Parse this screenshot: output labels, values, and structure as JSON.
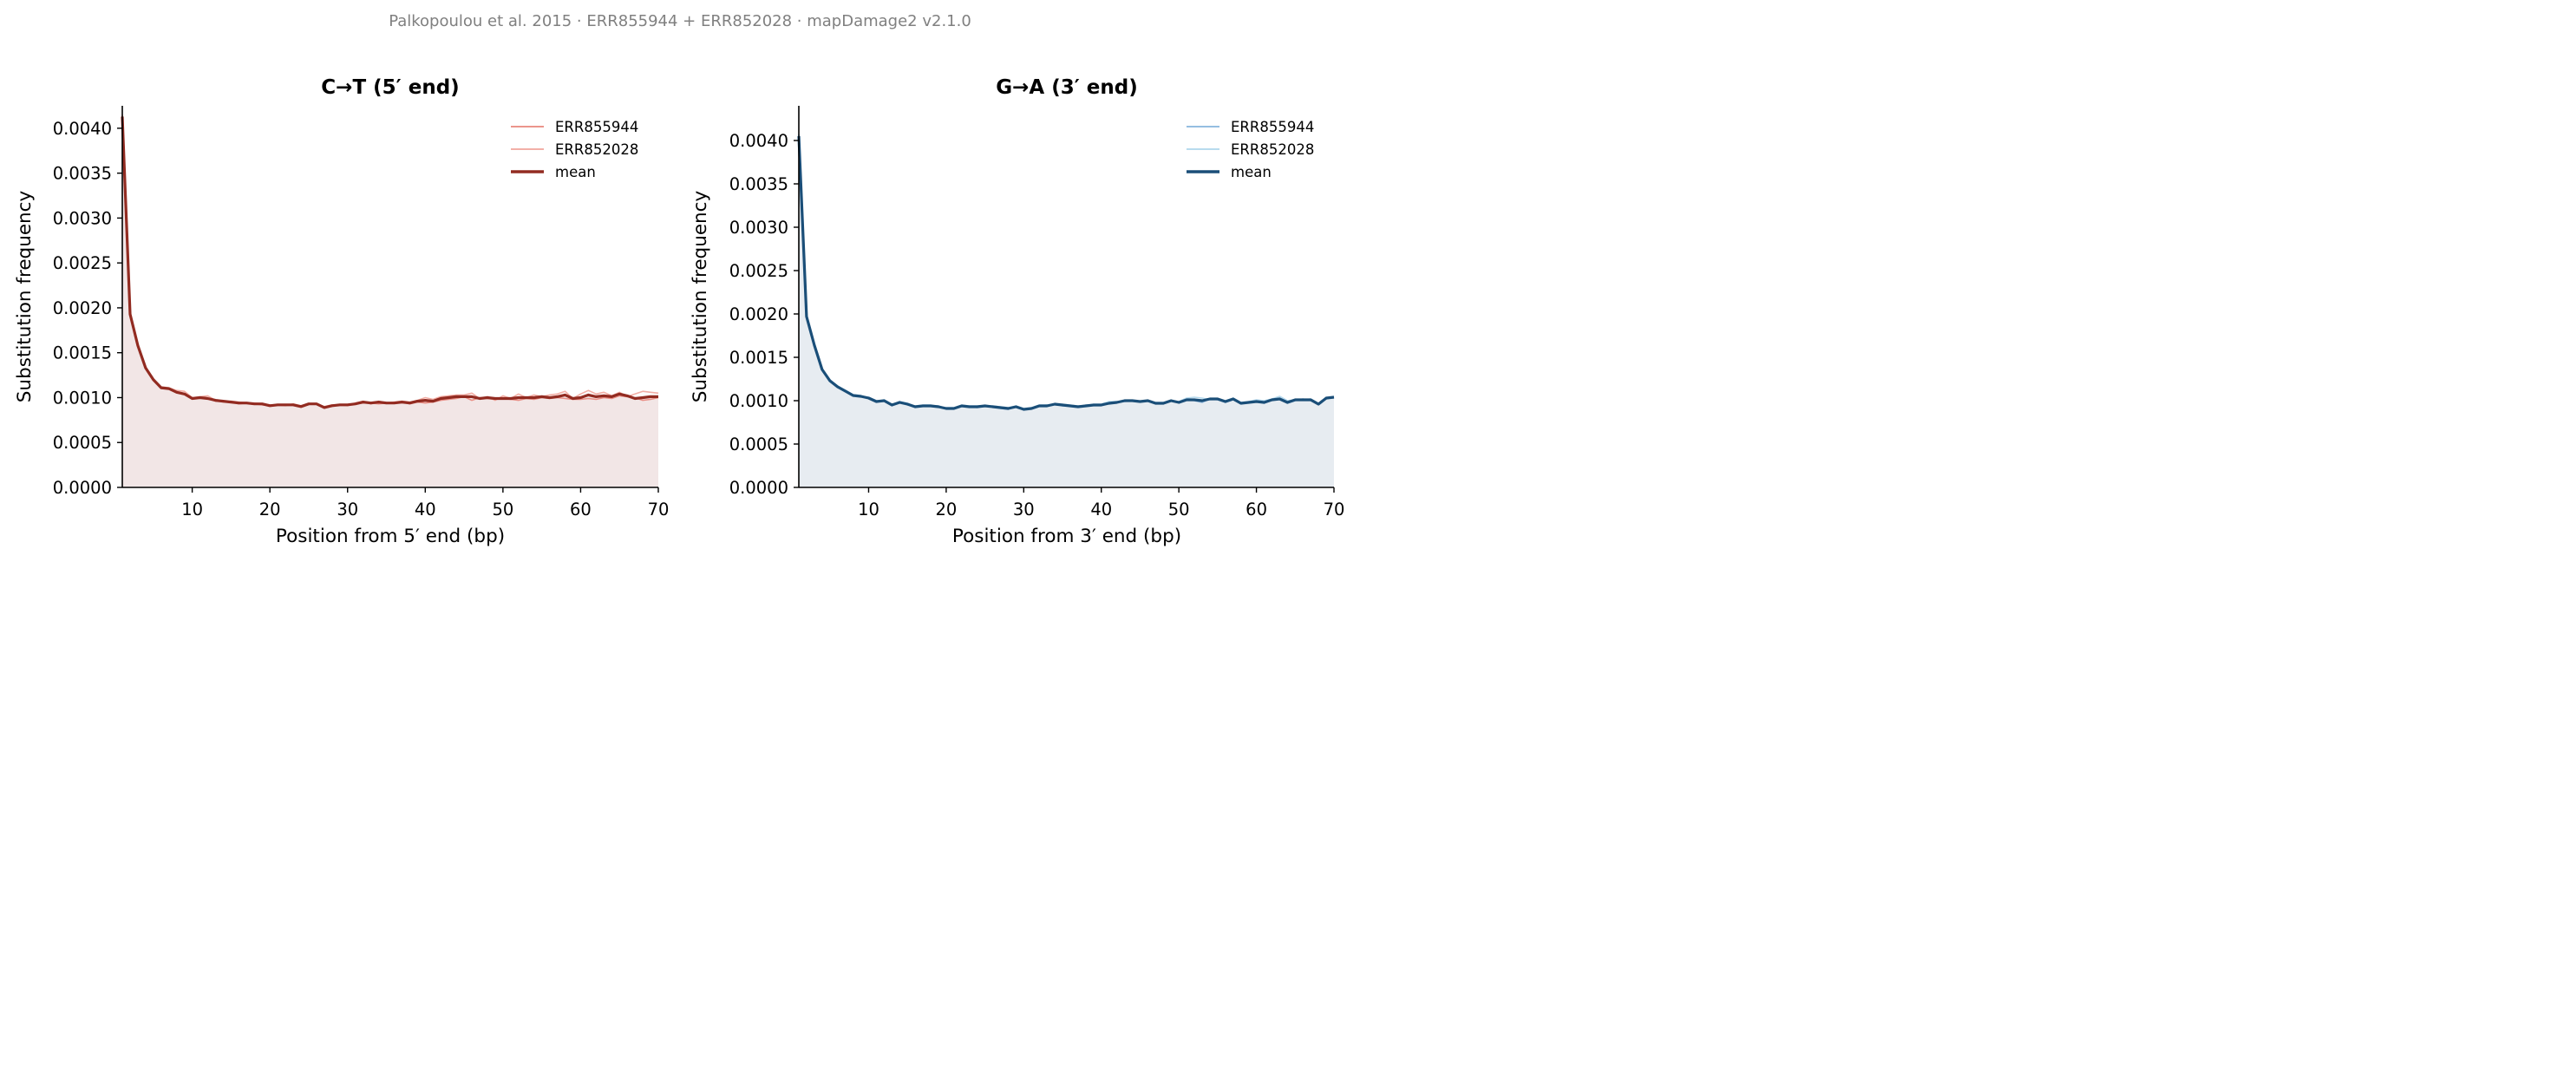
{
  "suptitle": "Palkopoulou et al. 2015  ·  ERR855944 + ERR852028  ·  mapDamage2 v2.1.0",
  "chart_data": [
    {
      "type": "line",
      "title": "C→T  (5′ end)",
      "xlabel": "Position from 5′ end (bp)",
      "ylabel": "Substitution frequency",
      "xlim": [
        1,
        70
      ],
      "ylim": [
        0,
        0.00425
      ],
      "xticks": [
        10,
        20,
        30,
        40,
        50,
        60,
        70
      ],
      "yticks": [
        "0.0000",
        "0.0005",
        "0.0010",
        "0.0015",
        "0.0020",
        "0.0025",
        "0.0030",
        "0.0035",
        "0.0040"
      ],
      "legend_position": "top-right",
      "grid": false,
      "fill_under": "mean",
      "colors": {
        "fill": "#f2e6e6",
        "series_1": "#e8867c",
        "series_2": "#f1a59b",
        "mean": "#922b21"
      },
      "x": [
        1,
        2,
        3,
        4,
        5,
        6,
        7,
        8,
        9,
        10,
        11,
        12,
        13,
        14,
        15,
        16,
        17,
        18,
        19,
        20,
        21,
        22,
        23,
        24,
        25,
        26,
        27,
        28,
        29,
        30,
        31,
        32,
        33,
        34,
        35,
        36,
        37,
        38,
        39,
        40,
        41,
        42,
        43,
        44,
        45,
        46,
        47,
        48,
        49,
        50,
        51,
        52,
        53,
        54,
        55,
        56,
        57,
        58,
        59,
        60,
        61,
        62,
        63,
        64,
        65,
        66,
        67,
        68,
        69,
        70
      ],
      "series": [
        {
          "name": "ERR855944",
          "values": [
            0.00415,
            0.00192,
            0.00157,
            0.00133,
            0.00119,
            0.00111,
            0.0011,
            0.00106,
            0.00104,
            0.001,
            0.001,
            0.00099,
            0.00096,
            0.00096,
            0.00095,
            0.00093,
            0.00094,
            0.00093,
            0.00092,
            0.00091,
            0.00092,
            0.00092,
            0.00092,
            0.0009,
            0.00093,
            0.00093,
            0.00089,
            0.00091,
            0.00092,
            0.00092,
            0.00093,
            0.00094,
            0.00094,
            0.00093,
            0.00094,
            0.00094,
            0.00095,
            0.00093,
            0.00095,
            0.00094,
            0.00095,
            0.00097,
            0.00098,
            0.00099,
            0.00101,
            0.00097,
            0.001,
            0.00099,
            0.00098,
            0.00099,
            0.00098,
            0.00097,
            0.00099,
            0.00098,
            0.001,
            0.00099,
            0.001,
            0.00099,
            0.00098,
            0.00098,
            0.00099,
            0.00098,
            0.001,
            0.00099,
            0.00102,
            0.00101,
            0.001,
            0.00097,
            0.00098,
            0.001
          ]
        },
        {
          "name": "ERR852028",
          "values": [
            0.00412,
            0.00195,
            0.00159,
            0.00134,
            0.0012,
            0.00112,
            0.00111,
            0.00108,
            0.00107,
            0.001,
            0.00101,
            0.00102,
            0.00097,
            0.00095,
            0.00096,
            0.00095,
            0.00094,
            0.00094,
            0.00093,
            0.00092,
            0.00092,
            0.00091,
            0.00093,
            0.00091,
            0.00093,
            0.00093,
            0.0009,
            0.00092,
            0.00092,
            0.00091,
            0.00094,
            0.00096,
            0.00093,
            0.00096,
            0.00094,
            0.00095,
            0.00096,
            0.00095,
            0.00097,
            0.001,
            0.00098,
            0.00101,
            0.00102,
            0.00103,
            0.00103,
            0.00105,
            0.00099,
            0.00101,
            0.00097,
            0.00102,
            0.00099,
            0.00104,
            0.001,
            0.00103,
            0.00101,
            0.00103,
            0.00104,
            0.00107,
            0.00099,
            0.00104,
            0.00108,
            0.00104,
            0.00106,
            0.00102,
            0.00106,
            0.00101,
            0.00104,
            0.00107,
            0.00106,
            0.00105
          ]
        },
        {
          "name": "mean",
          "values": [
            0.00413,
            0.00193,
            0.00158,
            0.00133,
            0.0012,
            0.00111,
            0.0011,
            0.00106,
            0.00104,
            0.00099,
            0.001,
            0.00099,
            0.00097,
            0.00096,
            0.00095,
            0.00094,
            0.00094,
            0.00093,
            0.00093,
            0.00091,
            0.00092,
            0.00092,
            0.00092,
            0.0009,
            0.00093,
            0.00093,
            0.00089,
            0.00091,
            0.00092,
            0.00092,
            0.00093,
            0.00095,
            0.00094,
            0.00095,
            0.00094,
            0.00094,
            0.00095,
            0.00094,
            0.00096,
            0.00097,
            0.00096,
            0.00099,
            0.001,
            0.00101,
            0.00101,
            0.00101,
            0.00099,
            0.001,
            0.00099,
            0.00099,
            0.00099,
            0.001,
            0.001,
            0.001,
            0.00101,
            0.001,
            0.00101,
            0.00103,
            0.00099,
            0.001,
            0.00103,
            0.00101,
            0.00102,
            0.00101,
            0.00104,
            0.00102,
            0.00099,
            0.001,
            0.00101,
            0.00101
          ]
        }
      ]
    },
    {
      "type": "line",
      "title": "G→A  (3′ end)",
      "xlabel": "Position from 3′ end (bp)",
      "ylabel": "Substitution frequency",
      "xlim": [
        1,
        70
      ],
      "ylim": [
        0,
        0.0044
      ],
      "xticks": [
        10,
        20,
        30,
        40,
        50,
        60,
        70
      ],
      "yticks": [
        "0.0000",
        "0.0005",
        "0.0010",
        "0.0015",
        "0.0020",
        "0.0025",
        "0.0030",
        "0.0035",
        "0.0040"
      ],
      "legend_position": "top-right",
      "grid": false,
      "fill_under": "mean",
      "colors": {
        "fill": "#e7ecf1",
        "series_1": "#86b4dd",
        "series_2": "#aed6ec",
        "mean": "#1a4e78"
      },
      "x": [
        1,
        2,
        3,
        4,
        5,
        6,
        7,
        8,
        9,
        10,
        11,
        12,
        13,
        14,
        15,
        16,
        17,
        18,
        19,
        20,
        21,
        22,
        23,
        24,
        25,
        26,
        27,
        28,
        29,
        30,
        31,
        32,
        33,
        34,
        35,
        36,
        37,
        38,
        39,
        40,
        41,
        42,
        43,
        44,
        45,
        46,
        47,
        48,
        49,
        50,
        51,
        52,
        53,
        54,
        55,
        56,
        57,
        58,
        59,
        60,
        61,
        62,
        63,
        64,
        65,
        66,
        67,
        68,
        69,
        70
      ],
      "series": [
        {
          "name": "ERR855944",
          "values": [
            0.00407,
            0.00196,
            0.00163,
            0.00135,
            0.00122,
            0.00115,
            0.00111,
            0.00106,
            0.00105,
            0.00104,
            0.001,
            0.001,
            0.00095,
            0.00099,
            0.00097,
            0.00093,
            0.00094,
            0.00094,
            0.00094,
            0.00091,
            0.00091,
            0.00094,
            0.00093,
            0.00092,
            0.00094,
            0.00093,
            0.00091,
            0.0009,
            0.00093,
            0.0009,
            0.00091,
            0.00094,
            0.00095,
            0.00096,
            0.00094,
            0.00094,
            0.00093,
            0.00095,
            0.00095,
            0.00095,
            0.00097,
            0.00098,
            0.00099,
            0.001,
            0.00099,
            0.001,
            0.00097,
            0.00097,
            0.001,
            0.00098,
            0.00101,
            0.001,
            0.00098,
            0.00102,
            0.00101,
            0.00098,
            0.00101,
            0.00097,
            0.00098,
            0.00099,
            0.00097,
            0.00101,
            0.00103,
            0.00097,
            0.001,
            0.00102,
            0.001,
            0.00096,
            0.00102,
            0.00104
          ]
        },
        {
          "name": "ERR852028",
          "values": [
            0.00402,
            0.00199,
            0.00166,
            0.00137,
            0.00124,
            0.00117,
            0.00112,
            0.00107,
            0.00106,
            0.00103,
            0.00099,
            0.00101,
            0.00096,
            0.00098,
            0.00095,
            0.00094,
            0.00095,
            0.00095,
            0.00093,
            0.00092,
            0.00092,
            0.00095,
            0.00094,
            0.00094,
            0.00094,
            0.00094,
            0.00093,
            0.00092,
            0.00094,
            0.00091,
            0.00092,
            0.00095,
            0.00095,
            0.00096,
            0.00096,
            0.00095,
            0.00094,
            0.00094,
            0.00096,
            0.00096,
            0.00099,
            0.00099,
            0.001,
            0.001,
            0.00099,
            0.001,
            0.00098,
            0.00098,
            0.001,
            0.00099,
            0.00103,
            0.00104,
            0.00103,
            0.00101,
            0.00102,
            0.001,
            0.00103,
            0.00098,
            0.00099,
            0.00101,
            0.001,
            0.00102,
            0.00105,
            0.001,
            0.00101,
            0.00101,
            0.00102,
            0.00097,
            0.00103,
            0.00105
          ]
        },
        {
          "name": "mean",
          "values": [
            0.00405,
            0.00197,
            0.00164,
            0.00136,
            0.00123,
            0.00116,
            0.00111,
            0.00106,
            0.00105,
            0.00103,
            0.00099,
            0.001,
            0.00095,
            0.00098,
            0.00096,
            0.00093,
            0.00094,
            0.00094,
            0.00093,
            0.00091,
            0.00091,
            0.00094,
            0.00093,
            0.00093,
            0.00094,
            0.00093,
            0.00092,
            0.00091,
            0.00093,
            0.0009,
            0.00091,
            0.00094,
            0.00094,
            0.00096,
            0.00095,
            0.00094,
            0.00093,
            0.00094,
            0.00095,
            0.00095,
            0.00097,
            0.00098,
            0.001,
            0.001,
            0.00099,
            0.001,
            0.00097,
            0.00097,
            0.001,
            0.00098,
            0.00101,
            0.00101,
            0.001,
            0.00102,
            0.00102,
            0.00099,
            0.00102,
            0.00097,
            0.00098,
            0.00099,
            0.00098,
            0.00101,
            0.00102,
            0.00098,
            0.00101,
            0.00101,
            0.00101,
            0.00096,
            0.00103,
            0.00104
          ]
        }
      ]
    }
  ]
}
